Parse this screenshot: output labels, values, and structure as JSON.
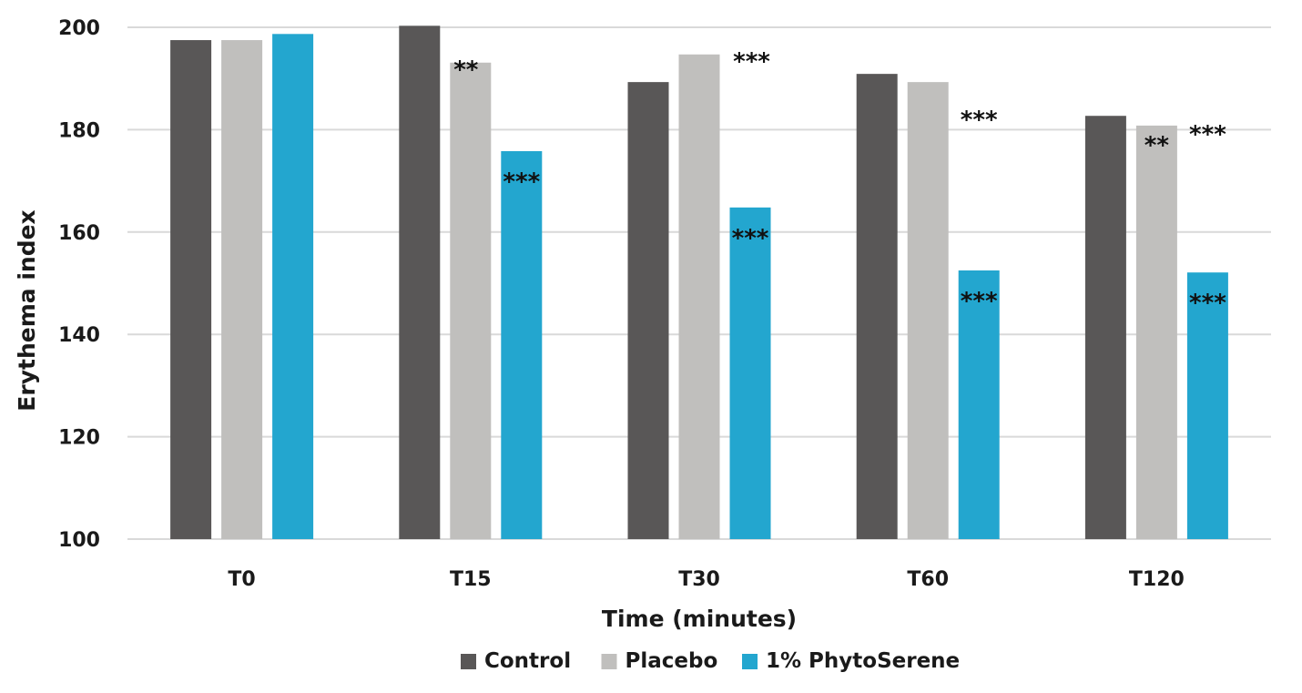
{
  "chart_data": {
    "type": "bar",
    "categories": [
      "T0",
      "T15",
      "T30",
      "T60",
      "T120"
    ],
    "series": [
      {
        "name": "Control",
        "color": "#595757",
        "values": [
          197.5,
          200.3,
          189.3,
          190.9,
          182.7
        ],
        "significance": [
          "",
          "",
          "",
          "",
          ""
        ]
      },
      {
        "name": "Placebo",
        "color": "#c0bfbd",
        "values": [
          197.5,
          193.1,
          194.7,
          189.3,
          180.8
        ],
        "significance": [
          "",
          "**",
          "***",
          "",
          "**"
        ]
      },
      {
        "name": "1% PhytoSerene",
        "color": "#23a6cf",
        "values": [
          198.7,
          175.8,
          164.8,
          152.5,
          152.1
        ],
        "significance": [
          "",
          "***",
          "***",
          "***",
          "***"
        ]
      }
    ],
    "extra_annotations": [
      {
        "category": "T60",
        "text": "***",
        "placement": "above-third-bar"
      },
      {
        "category": "T120",
        "text": "***",
        "placement": "above-third-bar"
      }
    ],
    "title": "",
    "xlabel": "Time (minutes)",
    "ylabel": "Erythema index",
    "ylim": [
      100,
      200
    ],
    "yticks": [
      100,
      120,
      140,
      160,
      180,
      200
    ],
    "grid": "horizontal",
    "legend_position": "bottom-center"
  }
}
